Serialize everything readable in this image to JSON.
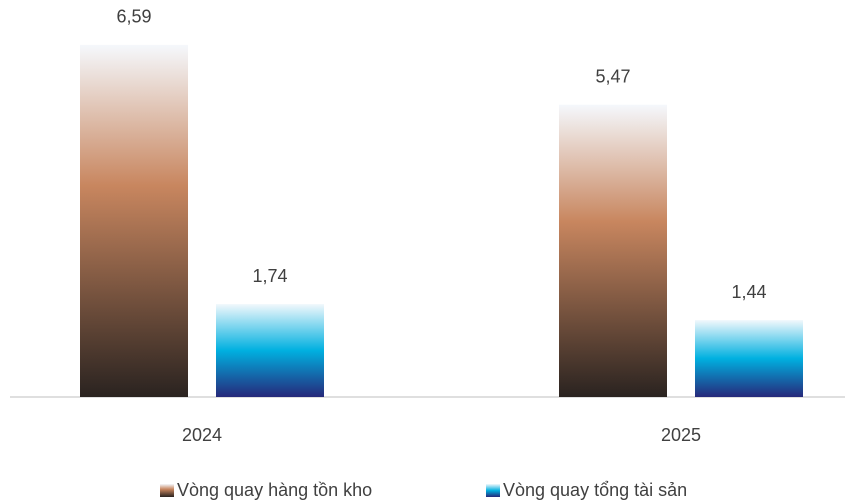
{
  "chart_data": {
    "type": "bar",
    "categories": [
      "2024",
      "2025"
    ],
    "series": [
      {
        "name": "Vòng quay hàng tồn kho",
        "color": "#c8865f",
        "values": [
          6.59,
          5.47
        ],
        "value_labels": [
          "6,59",
          "5,47"
        ]
      },
      {
        "name": "Vòng quay tổng tài sản",
        "color": "#00b0e0",
        "values": [
          1.74,
          1.44
        ],
        "value_labels": [
          "1,74",
          "1,44"
        ]
      }
    ],
    "ylim": [
      0,
      7
    ]
  }
}
